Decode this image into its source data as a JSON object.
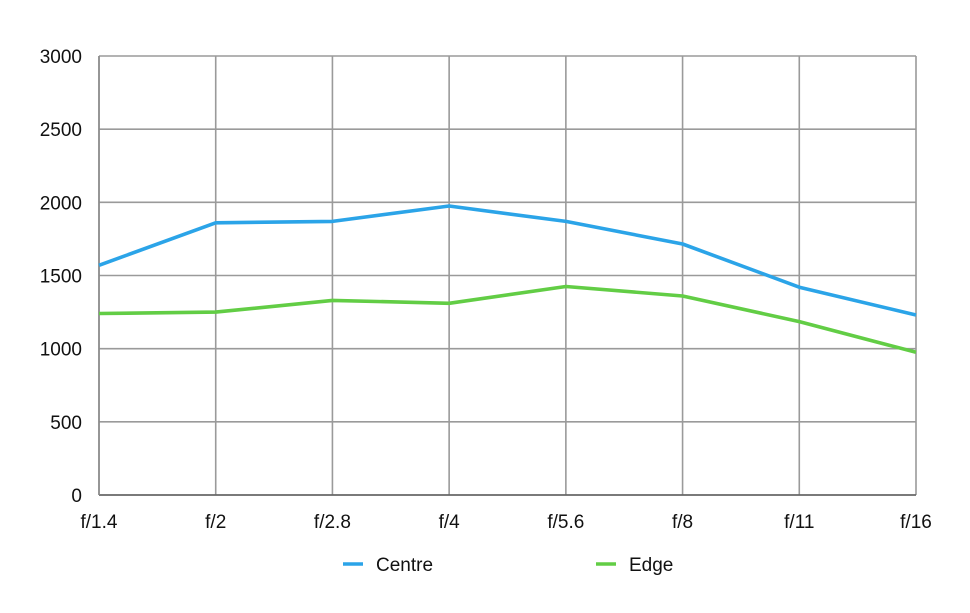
{
  "chart_data": {
    "type": "line",
    "title": "",
    "xlabel": "",
    "ylabel": "",
    "categories": [
      "f/1.4",
      "f/2",
      "f/2.8",
      "f/4",
      "f/5.6",
      "f/8",
      "f/11",
      "f/16"
    ],
    "ylim": [
      0,
      3000
    ],
    "yticks": [
      0,
      500,
      1000,
      1500,
      2000,
      2500,
      3000
    ],
    "grid": true,
    "legend_position": "bottom",
    "series": [
      {
        "name": "Centre",
        "color": "#2BA4E8",
        "values": [
          1570,
          1860,
          1870,
          1975,
          1870,
          1715,
          1420,
          1230
        ]
      },
      {
        "name": "Edge",
        "color": "#62CD45",
        "values": [
          1240,
          1250,
          1330,
          1310,
          1425,
          1360,
          1185,
          975
        ]
      }
    ]
  }
}
